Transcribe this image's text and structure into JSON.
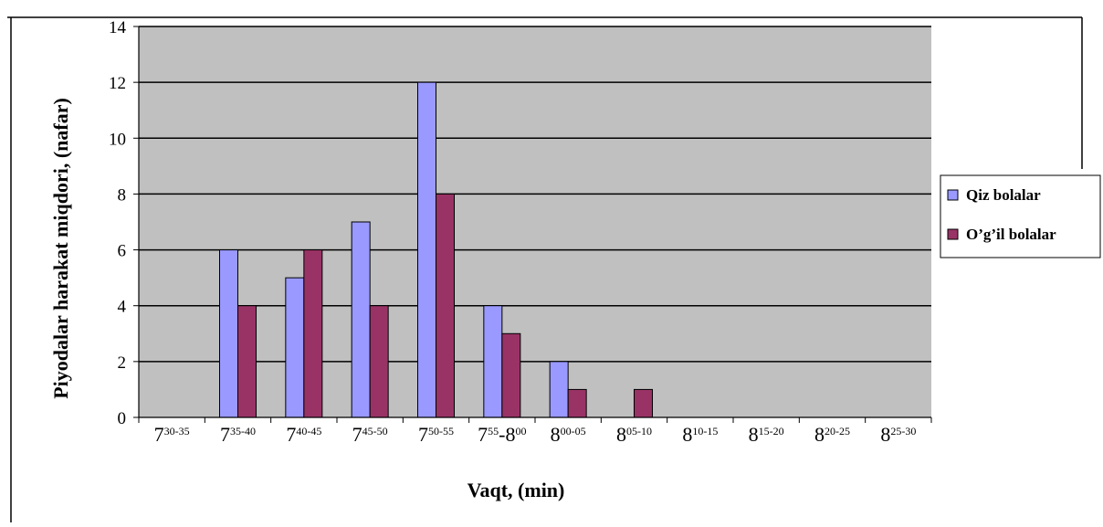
{
  "chart_data": {
    "type": "bar",
    "title": "",
    "xlabel": "Vaqt, (min)",
    "ylabel": "Piyodalar harakat miqdori, (nafar)",
    "ylim": [
      0,
      14
    ],
    "yticks": [
      "0",
      "2",
      "4",
      "6",
      "8",
      "10",
      "12",
      "14"
    ],
    "grid": true,
    "legend_position": "right",
    "categories": [
      {
        "base": "7",
        "sup": "30-35"
      },
      {
        "base": "7",
        "sup": "35-40"
      },
      {
        "base": "7",
        "sup": "40-45"
      },
      {
        "base": "7",
        "sup": "45-50"
      },
      {
        "base": "7",
        "sup": "50-55"
      },
      {
        "base": "7",
        "sup": "55",
        "base2": "-8",
        "sup2": "00"
      },
      {
        "base": "8",
        "sup": "00-05"
      },
      {
        "base": "8",
        "sup": "05-10"
      },
      {
        "base": "8",
        "sup": "10-15"
      },
      {
        "base": "8",
        "sup": "15-20"
      },
      {
        "base": "8",
        "sup": "20-25"
      },
      {
        "base": "8",
        "sup": "25-30"
      }
    ],
    "series": [
      {
        "name": "Qiz bolalar",
        "color": "#9999ff",
        "values": [
          0,
          6,
          5,
          7,
          12,
          4,
          2,
          0,
          0,
          0,
          0,
          0
        ]
      },
      {
        "name": "O’g’il bolalar",
        "color": "#993366",
        "values": [
          0,
          4,
          6,
          4,
          8,
          3,
          1,
          1,
          0,
          0,
          0,
          0
        ]
      }
    ]
  },
  "colors": {
    "plot_background": "#c0c0c0",
    "gridline": "#000000",
    "bar_outline": "#000000"
  }
}
